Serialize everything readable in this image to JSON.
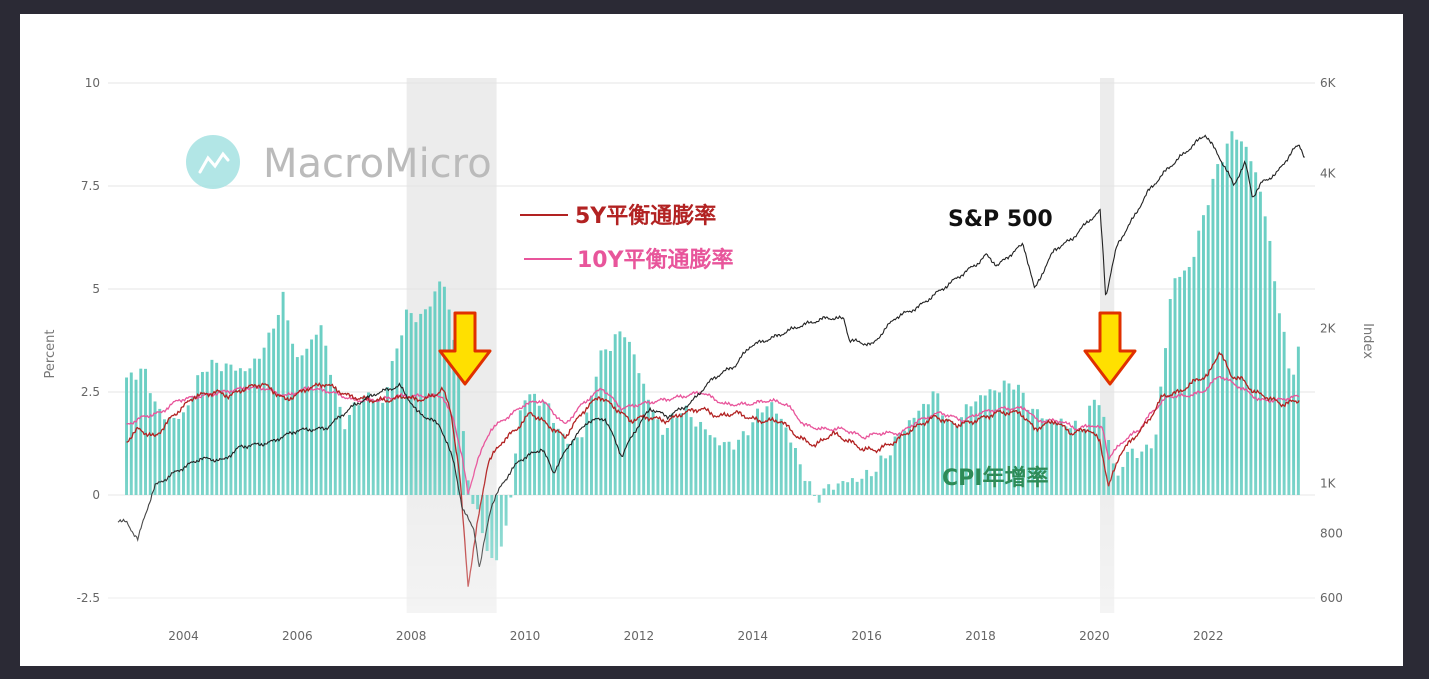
{
  "chart_data": {
    "type": "bar",
    "watermark": "MacroMicro",
    "x_ticks": [
      "2004",
      "2006",
      "2008",
      "2010",
      "2012",
      "2014",
      "2016",
      "2018",
      "2020",
      "2022"
    ],
    "x_range": [
      2002.85,
      2023.7
    ],
    "left_axis": {
      "label": "Percent",
      "range": [
        -2.5,
        10
      ],
      "ticks": [
        "-2.5",
        "0",
        "2.5",
        "5",
        "7.5",
        "10"
      ]
    },
    "right_axis": {
      "label": "Index",
      "scale": "log",
      "range": [
        600,
        6000
      ],
      "ticks": [
        {
          "value": 600,
          "label": "600"
        },
        {
          "value": 800,
          "label": "800"
        },
        {
          "value": 1000,
          "label": "1K"
        },
        {
          "value": 2000,
          "label": "2K"
        },
        {
          "value": 4000,
          "label": "4K"
        },
        {
          "value": 6000,
          "label": "6K"
        }
      ]
    },
    "recessions": [
      [
        2007.92,
        2009.5
      ],
      [
        2020.1,
        2020.35
      ]
    ],
    "series": [
      {
        "name": "CPI年增率",
        "kind": "bar",
        "color": "#6ccfc4",
        "label_color": "#2e8b57",
        "anchors": [
          [
            2003.0,
            2.6
          ],
          [
            2003.3,
            3.0
          ],
          [
            2003.6,
            2.1
          ],
          [
            2004.0,
            1.9
          ],
          [
            2004.4,
            3.0
          ],
          [
            2004.8,
            3.3
          ],
          [
            2005.2,
            3.1
          ],
          [
            2005.5,
            3.6
          ],
          [
            2005.75,
            4.7
          ],
          [
            2006.0,
            3.4
          ],
          [
            2006.4,
            4.2
          ],
          [
            2006.8,
            1.5
          ],
          [
            2007.2,
            2.6
          ],
          [
            2007.5,
            2.4
          ],
          [
            2007.9,
            4.2
          ],
          [
            2008.2,
            4.2
          ],
          [
            2008.55,
            5.5
          ],
          [
            2008.8,
            3.6
          ],
          [
            2008.95,
            0.8
          ],
          [
            2009.1,
            -0.4
          ],
          [
            2009.45,
            -1.9
          ],
          [
            2009.7,
            -0.5
          ],
          [
            2009.95,
            2.6
          ],
          [
            2010.3,
            2.2
          ],
          [
            2010.7,
            1.2
          ],
          [
            2011.0,
            1.6
          ],
          [
            2011.3,
            3.4
          ],
          [
            2011.75,
            3.8
          ],
          [
            2012.0,
            3.0
          ],
          [
            2012.4,
            1.7
          ],
          [
            2012.75,
            2.0
          ],
          [
            2013.0,
            1.6
          ],
          [
            2013.4,
            1.4
          ],
          [
            2013.8,
            1.4
          ],
          [
            2014.3,
            2.1
          ],
          [
            2014.6,
            1.7
          ],
          [
            2014.9,
            0.7
          ],
          [
            2015.1,
            -0.1
          ],
          [
            2015.5,
            0.1
          ],
          [
            2015.95,
            0.6
          ],
          [
            2016.4,
            1.0
          ],
          [
            2016.8,
            1.7
          ],
          [
            2017.2,
            2.7
          ],
          [
            2017.5,
            1.7
          ],
          [
            2017.9,
            2.1
          ],
          [
            2018.4,
            2.8
          ],
          [
            2018.6,
            2.9
          ],
          [
            2018.9,
            2.0
          ],
          [
            2019.2,
            1.6
          ],
          [
            2019.5,
            1.8
          ],
          [
            2019.8,
            1.8
          ],
          [
            2020.05,
            2.5
          ],
          [
            2020.2,
            1.5
          ],
          [
            2020.4,
            0.2
          ],
          [
            2020.6,
            1.0
          ],
          [
            2020.9,
            1.2
          ],
          [
            2021.1,
            1.7
          ],
          [
            2021.35,
            5.0
          ],
          [
            2021.7,
            5.4
          ],
          [
            2021.95,
            7.0
          ],
          [
            2022.2,
            8.3
          ],
          [
            2022.45,
            8.9
          ],
          [
            2022.7,
            8.2
          ],
          [
            2022.95,
            7.1
          ],
          [
            2023.2,
            5.0
          ],
          [
            2023.45,
            3.0
          ],
          [
            2023.6,
            3.7
          ]
        ]
      },
      {
        "name": "5Y平衡通膨率",
        "kind": "line",
        "color": "#b22222",
        "anchors": [
          [
            2003.0,
            1.3
          ],
          [
            2003.2,
            1.6
          ],
          [
            2003.5,
            1.4
          ],
          [
            2003.8,
            1.9
          ],
          [
            2004.2,
            2.4
          ],
          [
            2004.6,
            2.5
          ],
          [
            2004.8,
            2.4
          ],
          [
            2005.1,
            2.6
          ],
          [
            2005.4,
            2.7
          ],
          [
            2005.8,
            2.3
          ],
          [
            2006.2,
            2.6
          ],
          [
            2006.5,
            2.7
          ],
          [
            2006.9,
            2.4
          ],
          [
            2007.3,
            2.3
          ],
          [
            2007.6,
            2.3
          ],
          [
            2007.9,
            2.4
          ],
          [
            2008.1,
            2.3
          ],
          [
            2008.4,
            2.4
          ],
          [
            2008.55,
            2.6
          ],
          [
            2008.7,
            2.0
          ],
          [
            2008.85,
            0.5
          ],
          [
            2009.0,
            -2.2
          ],
          [
            2009.15,
            -0.8
          ],
          [
            2009.35,
            0.8
          ],
          [
            2009.6,
            1.3
          ],
          [
            2009.85,
            1.6
          ],
          [
            2010.1,
            2.0
          ],
          [
            2010.4,
            1.7
          ],
          [
            2010.7,
            1.4
          ],
          [
            2011.0,
            2.0
          ],
          [
            2011.3,
            2.4
          ],
          [
            2011.6,
            2.1
          ],
          [
            2011.85,
            1.8
          ],
          [
            2012.1,
            1.9
          ],
          [
            2012.5,
            1.8
          ],
          [
            2012.8,
            2.0
          ],
          [
            2013.1,
            2.1
          ],
          [
            2013.4,
            1.9
          ],
          [
            2013.7,
            2.0
          ],
          [
            2014.1,
            1.8
          ],
          [
            2014.5,
            1.8
          ],
          [
            2014.8,
            1.4
          ],
          [
            2015.1,
            1.2
          ],
          [
            2015.4,
            1.5
          ],
          [
            2015.7,
            1.3
          ],
          [
            2015.95,
            1.1
          ],
          [
            2016.2,
            1.1
          ],
          [
            2016.5,
            1.3
          ],
          [
            2016.8,
            1.6
          ],
          [
            2017.2,
            1.9
          ],
          [
            2017.6,
            1.7
          ],
          [
            2017.9,
            1.8
          ],
          [
            2018.3,
            2.0
          ],
          [
            2018.7,
            2.0
          ],
          [
            2018.95,
            1.6
          ],
          [
            2019.3,
            1.8
          ],
          [
            2019.6,
            1.5
          ],
          [
            2019.9,
            1.6
          ],
          [
            2020.1,
            1.3
          ],
          [
            2020.25,
            0.2
          ],
          [
            2020.45,
            1.0
          ],
          [
            2020.7,
            1.4
          ],
          [
            2020.95,
            1.8
          ],
          [
            2021.2,
            2.4
          ],
          [
            2021.5,
            2.5
          ],
          [
            2021.8,
            2.8
          ],
          [
            2022.0,
            2.9
          ],
          [
            2022.2,
            3.5
          ],
          [
            2022.4,
            2.9
          ],
          [
            2022.6,
            2.8
          ],
          [
            2022.8,
            2.5
          ],
          [
            2023.0,
            2.4
          ],
          [
            2023.3,
            2.2
          ],
          [
            2023.6,
            2.3
          ]
        ]
      },
      {
        "name": "10Y平衡通膨率",
        "kind": "line",
        "color": "#e8559b",
        "anchors": [
          [
            2003.0,
            1.7
          ],
          [
            2003.3,
            1.9
          ],
          [
            2003.6,
            2.0
          ],
          [
            2003.9,
            2.3
          ],
          [
            2004.3,
            2.4
          ],
          [
            2004.7,
            2.5
          ],
          [
            2005.1,
            2.6
          ],
          [
            2005.4,
            2.6
          ],
          [
            2005.8,
            2.4
          ],
          [
            2006.2,
            2.6
          ],
          [
            2006.6,
            2.5
          ],
          [
            2007.0,
            2.3
          ],
          [
            2007.4,
            2.3
          ],
          [
            2007.8,
            2.4
          ],
          [
            2008.2,
            2.4
          ],
          [
            2008.55,
            2.4
          ],
          [
            2008.75,
            1.8
          ],
          [
            2008.9,
            0.9
          ],
          [
            2009.0,
            0.0
          ],
          [
            2009.15,
            0.8
          ],
          [
            2009.4,
            1.6
          ],
          [
            2009.7,
            1.9
          ],
          [
            2010.0,
            2.2
          ],
          [
            2010.3,
            2.3
          ],
          [
            2010.7,
            1.7
          ],
          [
            2011.0,
            2.2
          ],
          [
            2011.35,
            2.6
          ],
          [
            2011.7,
            2.1
          ],
          [
            2012.0,
            2.2
          ],
          [
            2012.4,
            2.3
          ],
          [
            2012.8,
            2.4
          ],
          [
            2013.1,
            2.5
          ],
          [
            2013.5,
            2.2
          ],
          [
            2013.9,
            2.2
          ],
          [
            2014.3,
            2.3
          ],
          [
            2014.6,
            2.2
          ],
          [
            2014.9,
            1.7
          ],
          [
            2015.2,
            1.6
          ],
          [
            2015.6,
            1.6
          ],
          [
            2015.95,
            1.4
          ],
          [
            2016.2,
            1.5
          ],
          [
            2016.6,
            1.5
          ],
          [
            2016.9,
            1.8
          ],
          [
            2017.3,
            2.0
          ],
          [
            2017.7,
            1.8
          ],
          [
            2018.0,
            2.0
          ],
          [
            2018.4,
            2.1
          ],
          [
            2018.8,
            2.1
          ],
          [
            2019.0,
            1.8
          ],
          [
            2019.4,
            1.8
          ],
          [
            2019.7,
            1.6
          ],
          [
            2019.95,
            1.7
          ],
          [
            2020.15,
            1.6
          ],
          [
            2020.25,
            0.9
          ],
          [
            2020.5,
            1.3
          ],
          [
            2020.8,
            1.6
          ],
          [
            2021.0,
            2.0
          ],
          [
            2021.3,
            2.4
          ],
          [
            2021.6,
            2.4
          ],
          [
            2021.9,
            2.5
          ],
          [
            2022.2,
            2.9
          ],
          [
            2022.45,
            2.7
          ],
          [
            2022.7,
            2.5
          ],
          [
            2022.9,
            2.3
          ],
          [
            2023.2,
            2.3
          ],
          [
            2023.6,
            2.4
          ]
        ]
      },
      {
        "name": "S&P 500",
        "kind": "line",
        "axis": "right",
        "color": "#222222",
        "label_color": "#111111",
        "anchors": [
          [
            2002.85,
            850
          ],
          [
            2003.0,
            840
          ],
          [
            2003.2,
            780
          ],
          [
            2003.5,
            990
          ],
          [
            2003.9,
            1060
          ],
          [
            2004.3,
            1120
          ],
          [
            2004.7,
            1110
          ],
          [
            2005.0,
            1180
          ],
          [
            2005.5,
            1200
          ],
          [
            2006.0,
            1270
          ],
          [
            2006.5,
            1280
          ],
          [
            2007.0,
            1420
          ],
          [
            2007.4,
            1500
          ],
          [
            2007.8,
            1550
          ],
          [
            2008.1,
            1380
          ],
          [
            2008.5,
            1300
          ],
          [
            2008.75,
            1100
          ],
          [
            2008.9,
            890
          ],
          [
            2009.1,
            820
          ],
          [
            2009.2,
            680
          ],
          [
            2009.4,
            900
          ],
          [
            2009.6,
            1000
          ],
          [
            2009.9,
            1110
          ],
          [
            2010.3,
            1170
          ],
          [
            2010.5,
            1050
          ],
          [
            2010.8,
            1200
          ],
          [
            2011.1,
            1320
          ],
          [
            2011.4,
            1340
          ],
          [
            2011.7,
            1130
          ],
          [
            2011.9,
            1250
          ],
          [
            2012.2,
            1400
          ],
          [
            2012.5,
            1350
          ],
          [
            2012.9,
            1430
          ],
          [
            2013.3,
            1600
          ],
          [
            2013.7,
            1700
          ],
          [
            2013.95,
            1850
          ],
          [
            2014.4,
            1930
          ],
          [
            2014.8,
            2020
          ],
          [
            2015.3,
            2100
          ],
          [
            2015.6,
            2090
          ],
          [
            2015.7,
            1900
          ],
          [
            2016.1,
            1860
          ],
          [
            2016.5,
            2100
          ],
          [
            2016.9,
            2200
          ],
          [
            2017.4,
            2420
          ],
          [
            2017.95,
            2680
          ],
          [
            2018.1,
            2780
          ],
          [
            2018.3,
            2650
          ],
          [
            2018.75,
            2920
          ],
          [
            2018.95,
            2380
          ],
          [
            2019.3,
            2850
          ],
          [
            2019.6,
            2980
          ],
          [
            2019.9,
            3240
          ],
          [
            2020.1,
            3380
          ],
          [
            2020.2,
            2300
          ],
          [
            2020.4,
            2900
          ],
          [
            2020.7,
            3300
          ],
          [
            2020.95,
            3700
          ],
          [
            2021.3,
            4100
          ],
          [
            2021.6,
            4400
          ],
          [
            2021.95,
            4770
          ],
          [
            2022.2,
            4300
          ],
          [
            2022.45,
            3800
          ],
          [
            2022.65,
            4200
          ],
          [
            2022.78,
            3600
          ],
          [
            2022.95,
            3850
          ],
          [
            2023.2,
            4000
          ],
          [
            2023.5,
            4450
          ],
          [
            2023.6,
            4550
          ],
          [
            2023.7,
            4300
          ]
        ]
      }
    ]
  }
}
